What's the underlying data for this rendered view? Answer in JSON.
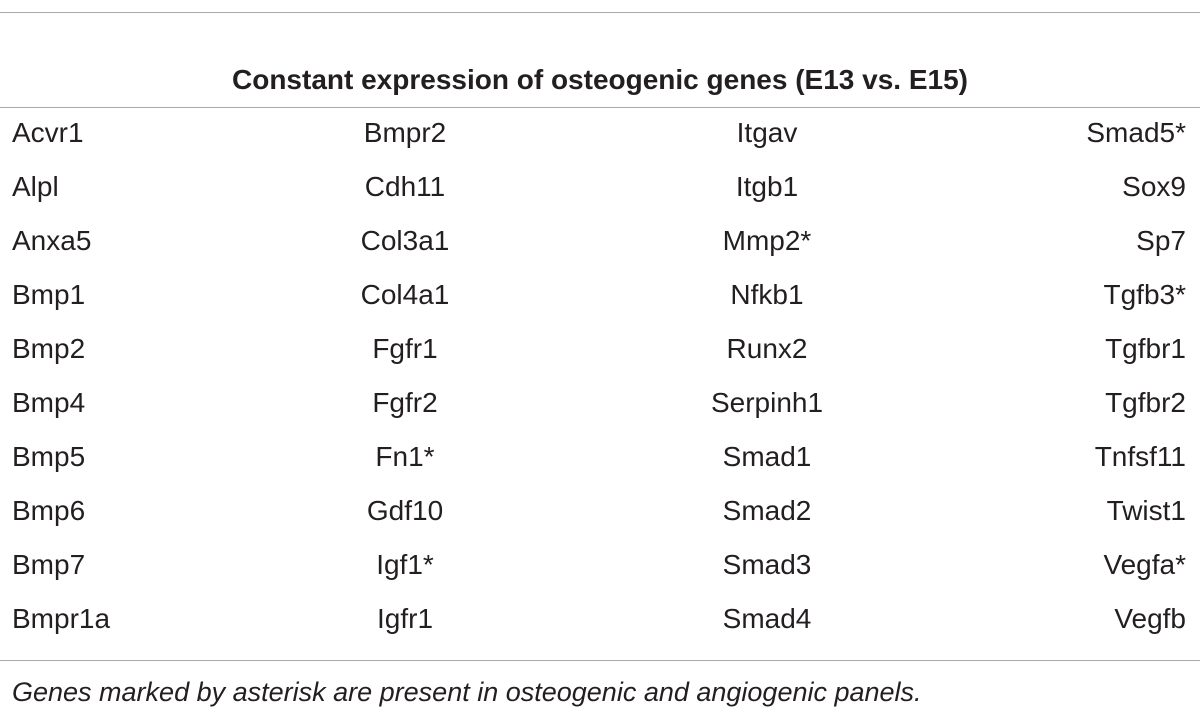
{
  "table": {
    "title": "Constant expression of osteogenic genes (E13 vs. E15)",
    "rows": [
      [
        "Acvr1",
        "Bmpr2",
        "Itgav",
        "Smad5*"
      ],
      [
        "Alpl",
        "Cdh11",
        "Itgb1",
        "Sox9"
      ],
      [
        "Anxa5",
        "Col3a1",
        "Mmp2*",
        "Sp7"
      ],
      [
        "Bmp1",
        "Col4a1",
        "Nfkb1",
        "Tgfb3*"
      ],
      [
        "Bmp2",
        "Fgfr1",
        "Runx2",
        "Tgfbr1"
      ],
      [
        "Bmp4",
        "Fgfr2",
        "Serpinh1",
        "Tgfbr2"
      ],
      [
        "Bmp5",
        "Fn1*",
        "Smad1",
        "Tnfsf11"
      ],
      [
        "Bmp6",
        "Gdf10",
        "Smad2",
        "Twist1"
      ],
      [
        "Bmp7",
        "Igf1*",
        "Smad3",
        "Vegfa*"
      ],
      [
        "Bmpr1a",
        "Igfr1",
        "Smad4",
        "Vegfb"
      ]
    ],
    "footnote": "Genes marked by asterisk are present in osteogenic and angiogenic panels."
  }
}
